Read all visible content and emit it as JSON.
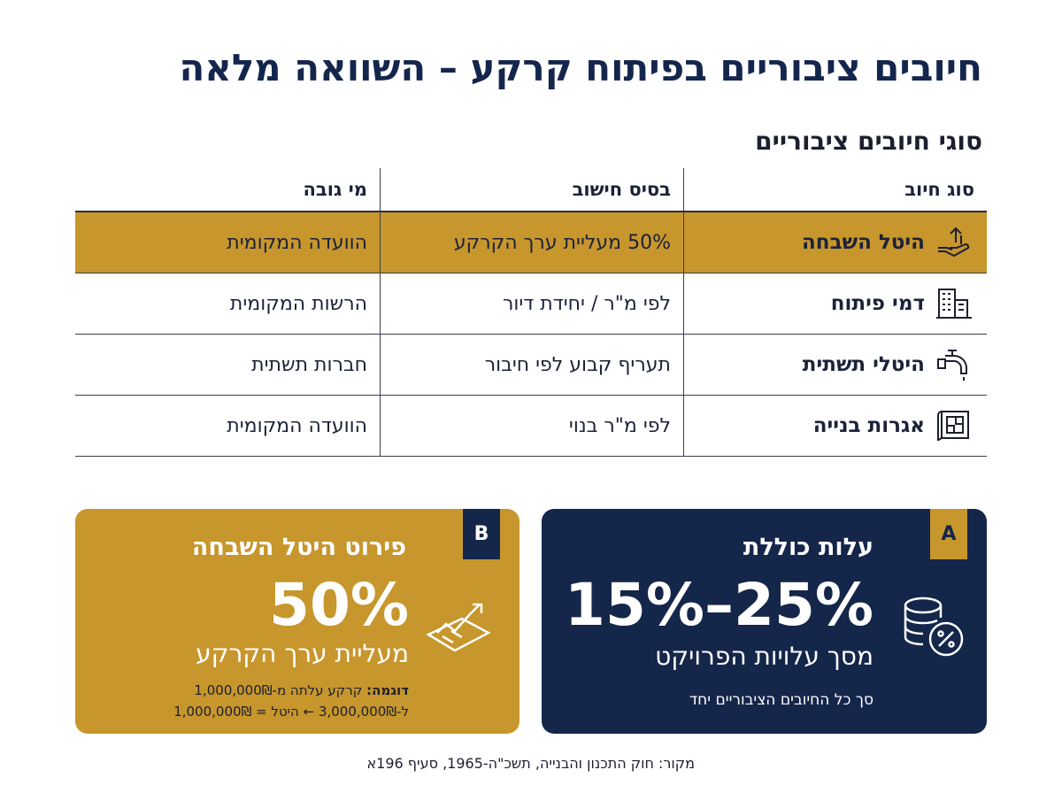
{
  "title": "חיובים ציבוריים בפיתוח קרקע – השוואה מלאה",
  "subtitle": "סוגי חיובים ציבוריים",
  "table": {
    "headers": [
      "סוג חיוב",
      "בסיס חישוב",
      "מי גובה"
    ],
    "rows": [
      {
        "type": "היטל השבחה",
        "icon": "hand-arrow-up-icon",
        "basis": "50% מעליית ערך הקרקע",
        "collector": "הוועדה המקומית",
        "highlight": true
      },
      {
        "type": "דמי פיתוח",
        "icon": "building-icon",
        "basis": "לפי מ\"ר / יחידת דיור",
        "collector": "הרשות המקומית",
        "highlight": false
      },
      {
        "type": "היטלי תשתית",
        "icon": "water-tap-icon",
        "basis": "תעריף קבוע לפי חיבור",
        "collector": "חברות תשתית",
        "highlight": false
      },
      {
        "type": "אגרות בנייה",
        "icon": "blueprint-icon",
        "basis": "לפי מ\"ר בנוי",
        "collector": "הוועדה המקומית",
        "highlight": false
      }
    ]
  },
  "card_a": {
    "tag": "A",
    "title": "עלות כוללת",
    "big": "15%–25%",
    "sub": "מסך עלויות הפרויקט",
    "note": "סך כל החיובים הציבוריים יחד",
    "icon": "coins-percent-icon"
  },
  "card_b": {
    "tag": "B",
    "title": "פירוט היטל השבחה",
    "big": "50%",
    "sub": "מעליית ערך הקרקע",
    "example_label": "דוגמה:",
    "example_line1": "קרקע עלתה מ-1,000,000₪",
    "example_line2": "ל-3,000,000₪ ← היטל = 1,000,000₪",
    "icon": "rising-land-value-icon"
  },
  "source": "מקור: חוק התכנון והבנייה, תשכ\"ה-1965, סעיף 196א",
  "colors": {
    "navy": "#14264a",
    "gold": "#c7962c"
  }
}
